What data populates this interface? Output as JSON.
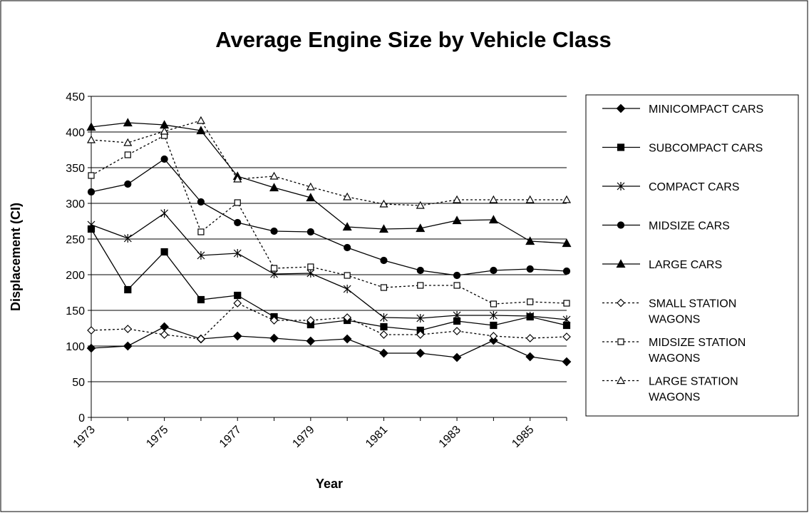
{
  "chart_data": {
    "type": "line",
    "title": "Average Engine Size by Vehicle Class",
    "x_label": "Year",
    "y_label": "Displacement (CI)",
    "categories": [
      "1973",
      null,
      "1975",
      null,
      "1977",
      null,
      "1979",
      null,
      "1981",
      null,
      "1983",
      null,
      "1985",
      null
    ],
    "ylim": [
      0,
      450
    ],
    "yticks": [
      0,
      50,
      100,
      150,
      200,
      250,
      300,
      350,
      400,
      450
    ],
    "grid": true,
    "legend": "right",
    "series": [
      {
        "name": "MINICOMPACT CARS",
        "color": "#000000",
        "marker": "diamond",
        "filled": true,
        "dashed": false,
        "values": [
          97,
          100,
          127,
          110,
          114,
          111,
          107,
          110,
          90,
          90,
          84,
          108,
          85,
          78
        ]
      },
      {
        "name": "SUBCOMPACT CARS",
        "color": "#000000",
        "marker": "square",
        "filled": true,
        "dashed": false,
        "values": [
          264,
          179,
          232,
          165,
          171,
          141,
          130,
          136,
          127,
          122,
          135,
          129,
          141,
          129
        ]
      },
      {
        "name": "COMPACT CARS",
        "color": "#000000",
        "marker": "star",
        "filled": true,
        "dashed": false,
        "values": [
          270,
          251,
          286,
          227,
          230,
          201,
          202,
          180,
          140,
          139,
          143,
          143,
          142,
          137
        ]
      },
      {
        "name": "MIDSIZE CARS",
        "color": "#000000",
        "marker": "circle",
        "filled": true,
        "dashed": false,
        "values": [
          316,
          327,
          362,
          302,
          273,
          261,
          260,
          238,
          220,
          206,
          199,
          206,
          208,
          205
        ]
      },
      {
        "name": "LARGE CARS",
        "color": "#000000",
        "marker": "triangle",
        "filled": true,
        "dashed": false,
        "values": [
          407,
          413,
          410,
          402,
          338,
          322,
          308,
          267,
          264,
          265,
          276,
          277,
          247,
          244
        ]
      },
      {
        "name": "SMALL STATION WAGONS",
        "color": "#000000",
        "marker": "diamond",
        "filled": false,
        "dashed": true,
        "values": [
          122,
          124,
          116,
          110,
          160,
          136,
          136,
          140,
          116,
          116,
          121,
          114,
          111,
          113
        ]
      },
      {
        "name": "MIDSIZE STATION WAGONS",
        "color": "#000000",
        "marker": "square",
        "filled": false,
        "dashed": true,
        "values": [
          339,
          368,
          395,
          260,
          301,
          209,
          211,
          199,
          182,
          185,
          185,
          159,
          162,
          160
        ]
      },
      {
        "name": "LARGE STATION WAGONS",
        "color": "#000000",
        "marker": "triangle",
        "filled": false,
        "dashed": true,
        "values": [
          389,
          385,
          401,
          416,
          334,
          338,
          323,
          309,
          299,
          297,
          305,
          305,
          305,
          305
        ]
      }
    ]
  }
}
